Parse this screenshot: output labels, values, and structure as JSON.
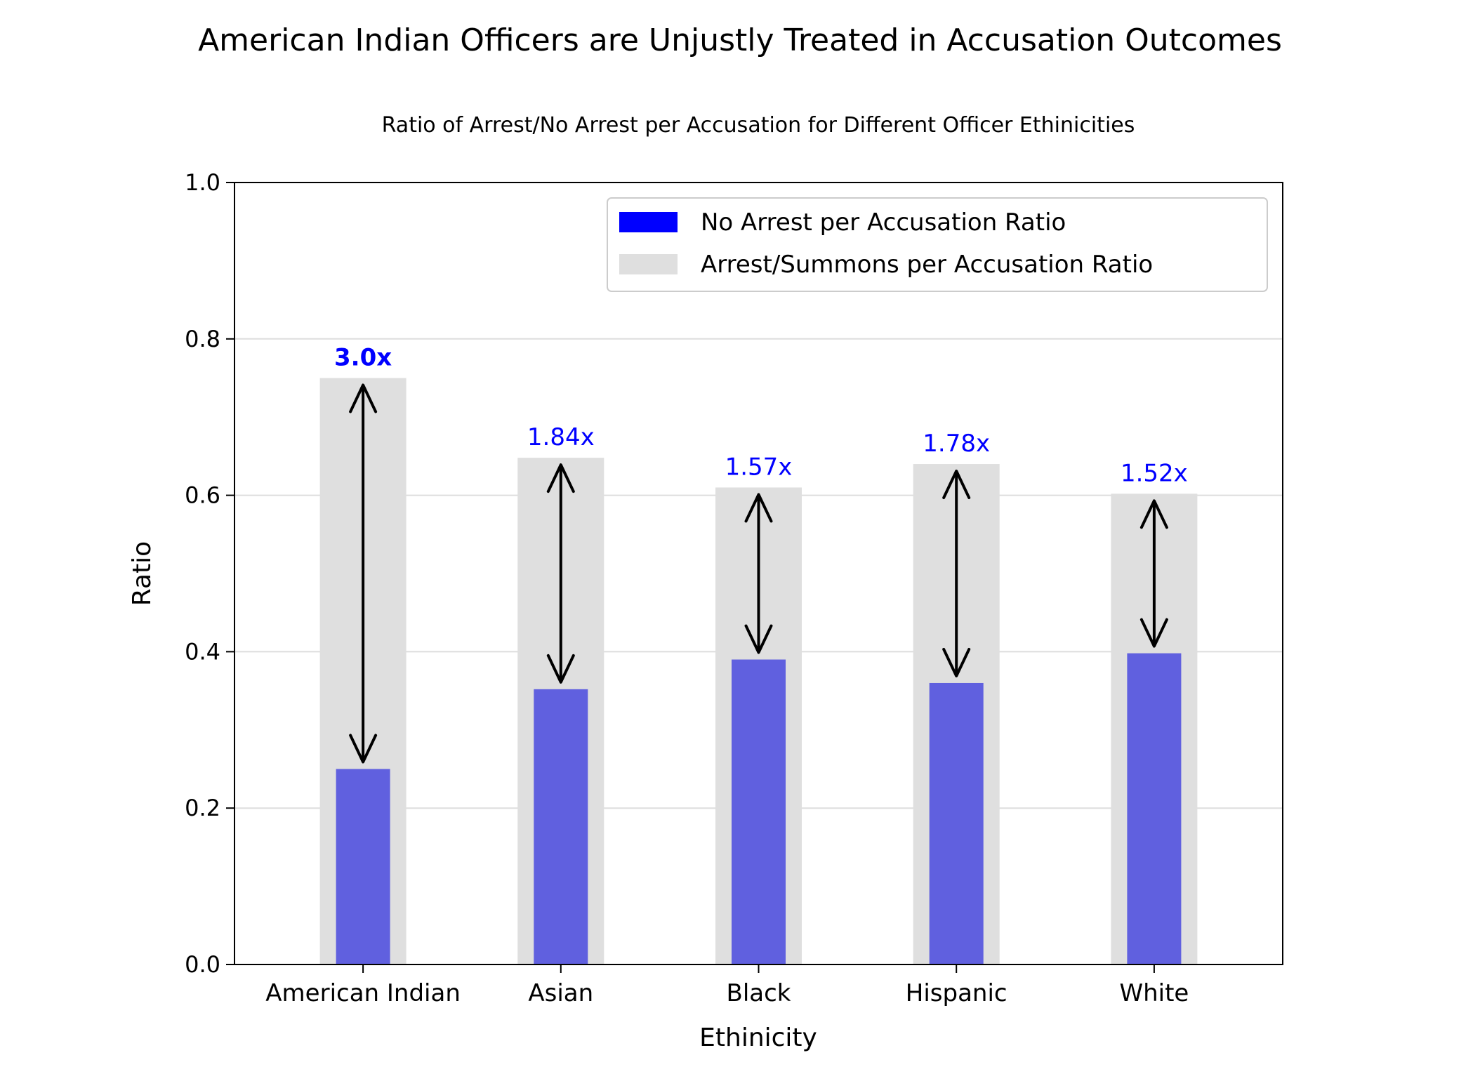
{
  "chart_data": {
    "type": "bar",
    "title": "American Indian Officers are Unjustly Treated in Accusation Outcomes",
    "subtitle": "Ratio of Arrest/No Arrest per Accusation for Different Officer Ethinicities",
    "xlabel": "Ethinicity",
    "ylabel": "Ratio",
    "ylim": [
      0,
      1.0
    ],
    "yticks": [
      "0.0",
      "0.2",
      "0.4",
      "0.6",
      "0.8",
      "1.0"
    ],
    "categories": [
      "American Indian",
      "Asian",
      "Black",
      "Hispanic",
      "White"
    ],
    "series": [
      {
        "name": "No Arrest per Accusation Ratio",
        "color": "#6060df",
        "legend_color": "#0000ff",
        "values": [
          0.25,
          0.352,
          0.39,
          0.36,
          0.398
        ]
      },
      {
        "name": "Arrest/Summons per Accusation Ratio",
        "color": "#dfdfdf",
        "values": [
          0.75,
          0.648,
          0.61,
          0.64,
          0.602
        ]
      }
    ],
    "annotations": [
      "3.0x",
      "1.84x",
      "1.57x",
      "1.78x",
      "1.52x"
    ],
    "annotation_color": "#0000ff",
    "grid": "horizontal",
    "legend_position": "top-right"
  }
}
